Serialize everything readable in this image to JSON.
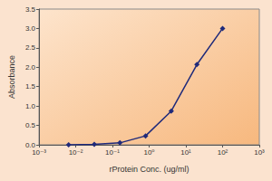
{
  "chart_data": {
    "type": "line",
    "x_label": "rProtein Conc. (ug/ml)",
    "y_label": "Absorbance",
    "x": [
      0.0064,
      0.032,
      0.16,
      0.8,
      4,
      20,
      100
    ],
    "values": [
      0.0,
      0.01,
      0.05,
      0.23,
      0.87,
      2.07,
      3.0
    ],
    "color": "#1f2a7a",
    "marker": "diamond",
    "log": "x",
    "grid": false,
    "xlim": [
      0.001,
      1000
    ],
    "xticks": [
      {
        "value": 0.001,
        "label": "10⁻³"
      },
      {
        "value": 0.01,
        "label": "10⁻²"
      },
      {
        "value": 0.1,
        "label": "10⁻¹"
      },
      {
        "value": 1,
        "label": "10⁰"
      },
      {
        "value": 10,
        "label": "10¹"
      },
      {
        "value": 100,
        "label": "10²"
      },
      {
        "value": 1000,
        "label": "10³"
      }
    ],
    "ylim": [
      0,
      3.5
    ],
    "yticks": [
      {
        "value": 0,
        "label": "0.0"
      },
      0.5,
      {
        "value": 1,
        "label": "1.0"
      },
      1.5,
      {
        "value": 2,
        "label": "2.0"
      },
      2.5,
      {
        "value": 3,
        "label": "3.0"
      },
      3.5
    ]
  }
}
